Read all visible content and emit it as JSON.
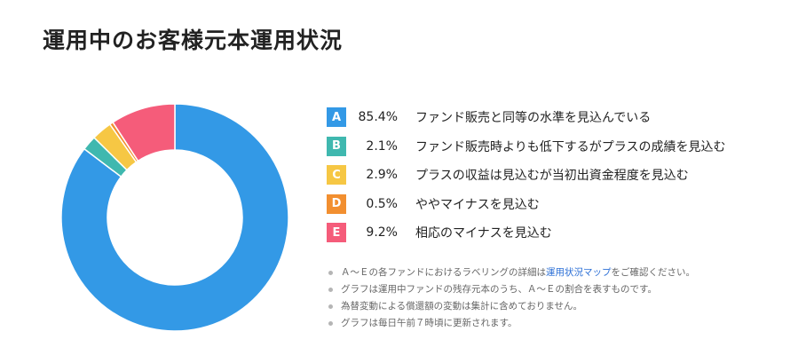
{
  "title": "運用中のお客様元本運用状況",
  "chart_data": {
    "type": "pie",
    "categories": [
      "A",
      "B",
      "C",
      "D",
      "E"
    ],
    "values": [
      85.4,
      2.1,
      2.9,
      0.5,
      9.2
    ],
    "labels": [
      "85.4%",
      "2.1%",
      "2.9%",
      "0.5%",
      "9.2%"
    ],
    "descriptions": [
      "ファンド販売と同等の水準を見込んでいる",
      "ファンド販売時よりも低下するがプラスの成績を見込む",
      "プラスの収益は見込むが当初出資金程度を見込む",
      "ややマイナスを見込む",
      "相応のマイナスを見込む"
    ],
    "colors": [
      "#3399e6",
      "#3fb8af",
      "#f6c744",
      "#f28f30",
      "#f55c7a"
    ]
  },
  "notes": {
    "note1_pre": "Ａ～Ｅの各ファンドにおけるラベリングの詳細は",
    "note1_link": "運用状況マップ",
    "note1_post": "をご確認ください。",
    "note2": "グラフは運用中ファンドの残存元本のうち、Ａ～Ｅの割合を表すものです。",
    "note3": "為替変動による償還額の変動は集計に含めておりません。",
    "note4": "グラフは毎日午前７時頃に更新されます。"
  }
}
